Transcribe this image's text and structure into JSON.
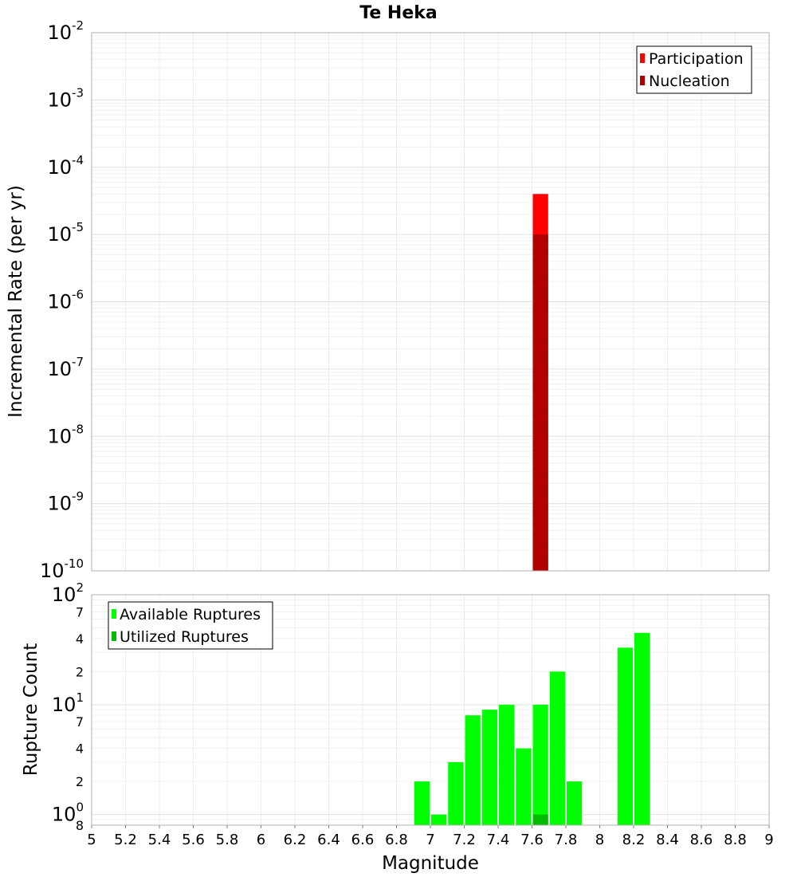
{
  "chart_data": [
    {
      "type": "bar",
      "title": "Te Heka",
      "xlabel": "",
      "ylabel": "Incremental Rate (per yr)",
      "yscale": "log",
      "ylim": [
        1e-10,
        0.01
      ],
      "xlim": [
        5,
        9
      ],
      "grid": true,
      "legend_position": "top-right",
      "ytick_labels": [
        {
          "base": "10",
          "exp": "-10"
        },
        {
          "base": "10",
          "exp": "-9"
        },
        {
          "base": "10",
          "exp": "-8"
        },
        {
          "base": "10",
          "exp": "-7"
        },
        {
          "base": "10",
          "exp": "-6"
        },
        {
          "base": "10",
          "exp": "-5"
        },
        {
          "base": "10",
          "exp": "-4"
        },
        {
          "base": "10",
          "exp": "-3"
        },
        {
          "base": "10",
          "exp": "-2"
        }
      ],
      "bar_width": 0.1,
      "series": [
        {
          "name": "Participation",
          "color": "#ff0000",
          "x": [
            7.65
          ],
          "values": [
            4e-05
          ]
        },
        {
          "name": "Nucleation",
          "color": "#b00000",
          "x": [
            7.65
          ],
          "values": [
            1e-05
          ]
        }
      ]
    },
    {
      "type": "bar",
      "title": "",
      "xlabel": "Magnitude",
      "ylabel": "Rupture Count",
      "yscale": "log",
      "ylim": [
        0.8,
        100
      ],
      "xlim": [
        5,
        9
      ],
      "grid": true,
      "legend_position": "top-left",
      "ytick_labels": [
        {
          "value": 0.8,
          "base": "8",
          "exp": ""
        },
        {
          "value": 1,
          "base": "10",
          "exp": "0"
        },
        {
          "value": 2,
          "base": "2",
          "exp": ""
        },
        {
          "value": 4,
          "base": "4",
          "exp": ""
        },
        {
          "value": 7,
          "base": "7",
          "exp": ""
        },
        {
          "value": 10,
          "base": "10",
          "exp": "1"
        },
        {
          "value": 20,
          "base": "2",
          "exp": ""
        },
        {
          "value": 40,
          "base": "4",
          "exp": ""
        },
        {
          "value": 70,
          "base": "7",
          "exp": ""
        },
        {
          "value": 100,
          "base": "10",
          "exp": "2"
        }
      ],
      "xtick_labels": [
        "5",
        "5.2",
        "5.4",
        "5.6",
        "5.8",
        "6",
        "6.2",
        "6.4",
        "6.6",
        "6.8",
        "7",
        "7.2",
        "7.4",
        "7.6",
        "7.8",
        "8",
        "8.2",
        "8.4",
        "8.6",
        "8.8",
        "9"
      ],
      "bar_width": 0.1,
      "series": [
        {
          "name": "Available Ruptures",
          "color": "#00ff00",
          "x": [
            6.95,
            7.05,
            7.15,
            7.25,
            7.35,
            7.45,
            7.55,
            7.65,
            7.75,
            7.85,
            8.15,
            8.25
          ],
          "values": [
            2,
            1,
            3,
            8,
            9,
            10,
            4,
            10,
            20,
            2,
            33,
            45
          ]
        },
        {
          "name": "Utilized Ruptures",
          "color": "#00bb00",
          "x": [
            7.65
          ],
          "values": [
            1
          ]
        }
      ]
    }
  ]
}
